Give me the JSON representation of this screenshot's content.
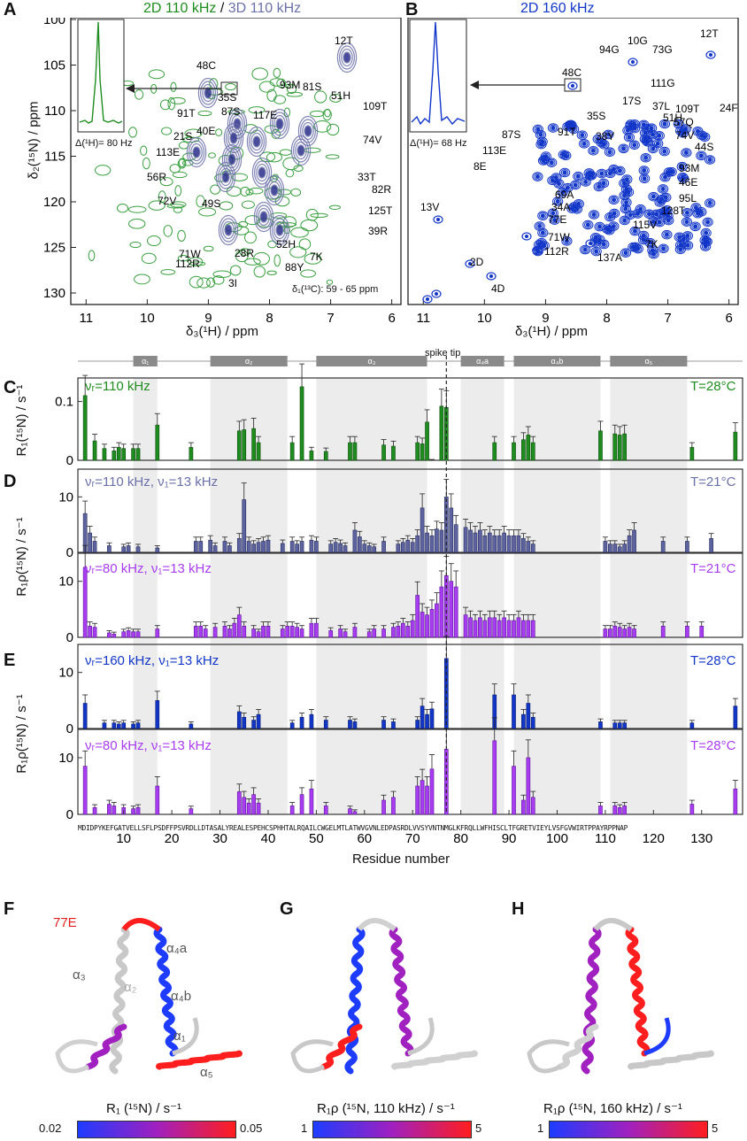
{
  "panels": {
    "A": {
      "letter": "A",
      "title_green": "2D 110 kHz",
      "title_sep": " / ",
      "title_purple": "3D 110 kHz",
      "inset_label": "Δ(¹H)= 80 Hz",
      "slice_label": "δ₁(¹³C): 59 - 65 ppm",
      "xlabel": "δ₃(¹H) / ppm",
      "ylabel": "δ₂(¹⁵N) / ppm",
      "peaks": [
        "48C",
        "12T",
        "35S",
        "93M",
        "81S",
        "51H",
        "109T",
        "91T",
        "87S",
        "117E",
        "21S",
        "40E",
        "74V",
        "113E",
        "56R",
        "33T",
        "72V",
        "49S",
        "82R",
        "125T",
        "52H",
        "39R",
        "71W",
        "28R",
        "7K",
        "112R",
        "88Y",
        "3I"
      ]
    },
    "B": {
      "letter": "B",
      "title": "2D 160 kHz",
      "inset_label": "Δ(¹H)= 68 Hz",
      "xlabel": "δ₃(¹H) / ppm",
      "peaks": [
        "12T",
        "94G",
        "10G",
        "73G",
        "48C",
        "111G",
        "37L",
        "17S",
        "35S",
        "51H",
        "109T",
        "24F",
        "91T",
        "38Y",
        "57Q",
        "87S",
        "74V",
        "113E",
        "44S",
        "8E",
        "93M",
        "46E",
        "69A",
        "95L",
        "34A",
        "128T",
        "13V",
        "77E",
        "115V",
        "71W",
        "7K",
        "112R",
        "137A",
        "2D",
        "4D"
      ]
    },
    "C": {
      "letter": "C",
      "label": "νᵣ=110 kHz",
      "temp": "T=28°C",
      "ylabel": "R₁(¹⁵N) / s⁻¹",
      "yticks": [
        "0",
        "0.1"
      ]
    },
    "D": {
      "letter": "D",
      "label1": "νᵣ=110 kHz, ν₁=13 kHz",
      "temp1": "T=21°C",
      "label2": "νᵣ=80 kHz, ν₁=13 kHz",
      "temp2": "T=21°C",
      "ylabel": "R₁ρ(¹⁵N) / s⁻¹",
      "yticks": [
        "0",
        "10"
      ]
    },
    "E": {
      "letter": "E",
      "label1": "νᵣ=160 kHz, ν₁=13 kHz",
      "temp1": "T=28°C",
      "label2": "νᵣ=80 kHz, ν₁=13 kHz",
      "temp2": "T=28°C",
      "ylabel": "R₁ρ(¹⁵N) / s⁻¹",
      "yticks": [
        "0",
        "10"
      ]
    },
    "F": {
      "letter": "F",
      "mark": "77E",
      "helices": [
        "α₃",
        "α₄a",
        "α₄b",
        "α₁",
        "α₅",
        "α₂"
      ],
      "cbar_label": "R₁ (¹⁵N) / s⁻¹",
      "cbar_min": "0.02",
      "cbar_max": "0.05"
    },
    "G": {
      "letter": "G",
      "cbar_label": "R₁ρ (¹⁵N, 110 kHz) / s⁻¹",
      "cbar_min": "1",
      "cbar_max": "5"
    },
    "H": {
      "letter": "H",
      "cbar_label": "R₁ρ (¹⁵N, 160 kHz) / s⁻¹",
      "cbar_min": "1",
      "cbar_max": "5"
    }
  },
  "axis_ticks": {
    "ppm_x": [
      "11",
      "10",
      "9",
      "8",
      "7",
      "6"
    ],
    "ppm_y": [
      "100",
      "105",
      "110",
      "115",
      "120",
      "125",
      "130"
    ],
    "residue_numbers": [
      "10",
      "20",
      "30",
      "40",
      "50",
      "60",
      "70",
      "80",
      "90",
      "100",
      "110",
      "120",
      "130"
    ]
  },
  "sequence": "MDIDPYKEFGATVELLSFLPSDFFPSVRDLLDTASALYREALESPEHCSPHHTALRQAILCWGELMTLATWVGVNLEDPASRDLVVSYVNTNMGLKFRQLLWFHISCLTFGRETVIEYLVSFGVWIRTPPAYRPPNAP",
  "xaxis_label": "Residue number",
  "spike_label": "spike tip",
  "helix_bar": [
    "α₁",
    "α₂",
    "α₃",
    "α₄a",
    "α₄b",
    "α₅"
  ],
  "chart_data": [
    {
      "type": "bar",
      "title": "R1 110 kHz T=28°C",
      "x_label": "Residue number",
      "ylim": [
        0,
        0.14
      ],
      "x": [
        2,
        4,
        6,
        8,
        9,
        10,
        12,
        13,
        17,
        24,
        34,
        35,
        37,
        38,
        45,
        47,
        49,
        52,
        57,
        58,
        64,
        66,
        71,
        72,
        73,
        74,
        76,
        77,
        87,
        91,
        93,
        94,
        95,
        109,
        112,
        113,
        114,
        128,
        137
      ],
      "values": [
        0.11,
        0.033,
        0.02,
        0.016,
        0.022,
        0.02,
        0.02,
        0.02,
        0.06,
        0.022,
        0.05,
        0.052,
        0.054,
        0.03,
        0.03,
        0.125,
        0.016,
        0.015,
        0.03,
        0.03,
        0.026,
        0.024,
        0.03,
        0.028,
        0.065,
        0.0,
        0.092,
        0.09,
        0.03,
        0.03,
        0.035,
        0.043,
        0.03,
        0.05,
        0.045,
        0.043,
        0.045,
        0.022,
        0.048
      ]
    },
    {
      "type": "bar",
      "title": "R1rho 110 kHz T=21°C",
      "x_label": "Residue number",
      "ylim": [
        0,
        15
      ],
      "x": [
        2,
        3,
        4,
        7,
        10,
        11,
        13,
        17,
        25,
        26,
        28,
        29,
        31,
        32,
        34,
        35,
        36,
        37,
        38,
        39,
        40,
        43,
        45,
        46,
        47,
        49,
        50,
        53,
        54,
        55,
        56,
        58,
        59,
        60,
        61,
        62,
        64,
        67,
        68,
        69,
        70,
        71,
        72,
        73,
        74,
        75,
        76,
        77,
        78,
        79,
        81,
        82,
        83,
        84,
        85,
        86,
        87,
        88,
        89,
        90,
        91,
        92,
        93,
        94,
        95,
        110,
        111,
        112,
        113,
        114,
        115,
        116,
        122,
        127,
        132
      ],
      "values": [
        7.0,
        3.5,
        2.0,
        1.2,
        1.0,
        1.2,
        1.0,
        0.8,
        2.0,
        2.0,
        2.2,
        1.2,
        2.0,
        1.2,
        2.5,
        9.5,
        2.0,
        1.5,
        1.8,
        2.0,
        2.2,
        1.6,
        2.0,
        1.5,
        2.0,
        2.2,
        2.0,
        1.5,
        1.8,
        1.6,
        1.2,
        4.0,
        2.8,
        1.5,
        1.2,
        1.0,
        2.0,
        1.5,
        1.8,
        2.2,
        1.8,
        3.0,
        8.0,
        3.5,
        3.0,
        4.2,
        4.0,
        10.0,
        8.0,
        5.0,
        4.5,
        4.0,
        3.5,
        4.0,
        3.0,
        3.5,
        3.0,
        3.0,
        3.5,
        3.0,
        3.0,
        3.0,
        2.5,
        2.0,
        1.5,
        2.0,
        1.5,
        1.5,
        1.0,
        1.5,
        3.0,
        4.0,
        2.0,
        2.0,
        2.5
      ]
    },
    {
      "type": "bar",
      "title": "R1rho 80 kHz T=21°C",
      "x_label": "Residue number",
      "ylim": [
        0,
        15
      ],
      "x": [
        2,
        3,
        4,
        7,
        8,
        10,
        11,
        12,
        13,
        17,
        25,
        26,
        27,
        29,
        31,
        32,
        33,
        34,
        35,
        37,
        38,
        39,
        40,
        43,
        44,
        45,
        46,
        47,
        49,
        50,
        53,
        55,
        56,
        58,
        61,
        62,
        64,
        66,
        67,
        68,
        69,
        70,
        71,
        72,
        73,
        74,
        75,
        76,
        77,
        78,
        79,
        81,
        82,
        83,
        84,
        85,
        86,
        87,
        88,
        89,
        90,
        91,
        92,
        93,
        94,
        95,
        110,
        111,
        112,
        113,
        114,
        115,
        116,
        122,
        127,
        130
      ],
      "values": [
        12.5,
        2.0,
        1.8,
        0.8,
        0.6,
        1.0,
        1.2,
        1.0,
        1.0,
        1.5,
        2.0,
        2.0,
        1.5,
        1.8,
        2.0,
        1.5,
        2.5,
        4.0,
        2.0,
        1.5,
        1.0,
        2.0,
        2.0,
        1.5,
        2.0,
        2.0,
        1.8,
        1.5,
        2.5,
        2.5,
        1.2,
        1.5,
        1.0,
        1.8,
        1.0,
        1.5,
        1.5,
        1.8,
        2.0,
        2.5,
        2.0,
        3.0,
        7.5,
        4.5,
        4.0,
        5.0,
        6.0,
        9.0,
        11.0,
        10.0,
        9.0,
        4.0,
        3.5,
        3.0,
        3.5,
        3.0,
        3.5,
        3.5,
        3.0,
        3.5,
        3.0,
        3.0,
        3.5,
        3.0,
        3.0,
        3.0,
        1.5,
        1.5,
        2.0,
        1.8,
        1.5,
        1.8,
        1.5,
        2.0,
        2.0,
        2.0
      ]
    },
    {
      "type": "bar",
      "title": "R1rho 160 kHz T=28°C",
      "x_label": "Residue number",
      "ylim": [
        0,
        15
      ],
      "x": [
        2,
        6,
        8,
        9,
        10,
        12,
        13,
        17,
        24,
        34,
        35,
        37,
        38,
        45,
        47,
        49,
        52,
        57,
        58,
        64,
        66,
        71,
        72,
        73,
        74,
        77,
        87,
        91,
        93,
        94,
        95,
        109,
        112,
        113,
        114,
        128,
        137
      ],
      "values": [
        4.5,
        1.0,
        1.0,
        0.8,
        1.0,
        0.8,
        1.0,
        5.0,
        0.8,
        3.0,
        2.0,
        1.5,
        2.5,
        1.0,
        2.0,
        2.5,
        1.5,
        1.5,
        1.2,
        1.5,
        1.2,
        1.5,
        4.0,
        2.5,
        3.5,
        12.5,
        6.0,
        6.0,
        2.5,
        4.5,
        2.0,
        1.2,
        1.0,
        1.0,
        1.0,
        1.0,
        4.0
      ]
    },
    {
      "type": "bar",
      "title": "R1rho 80 kHz T=28°C",
      "x_label": "Residue number",
      "ylim": [
        0,
        15
      ],
      "x": [
        2,
        4,
        7,
        8,
        10,
        12,
        13,
        17,
        24,
        34,
        35,
        36,
        37,
        38,
        45,
        47,
        49,
        52,
        57,
        58,
        64,
        66,
        71,
        72,
        73,
        74,
        77,
        87,
        91,
        93,
        94,
        95,
        109,
        112,
        113,
        114,
        128,
        137
      ],
      "values": [
        8.5,
        1.2,
        1.8,
        1.5,
        1.2,
        1.0,
        1.2,
        5.0,
        1.0,
        4.0,
        3.0,
        2.0,
        3.5,
        2.0,
        1.5,
        3.5,
        4.5,
        1.5,
        1.0,
        0.5,
        2.5,
        3.0,
        5.0,
        6.0,
        5.0,
        8.0,
        11.5,
        13.0,
        8.5,
        2.5,
        10.0,
        3.0,
        1.5,
        1.5,
        1.2,
        1.5,
        1.8,
        4.5
      ]
    }
  ],
  "colors": {
    "green": "#1e8c1e",
    "purple_dark": "#6b70a8",
    "blue": "#1236c8",
    "magenta": "#a83cf0",
    "grey": "#888888"
  }
}
